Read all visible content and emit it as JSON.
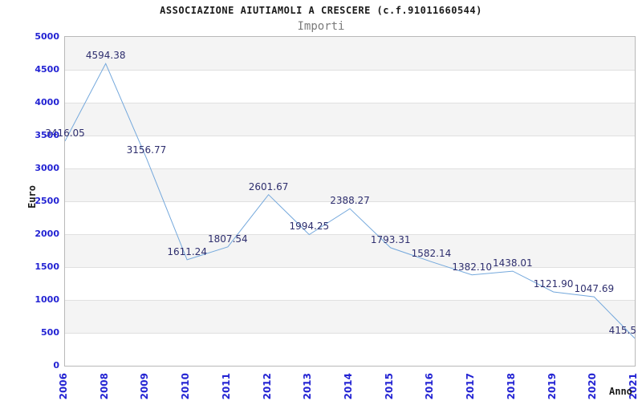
{
  "chart_data": {
    "type": "line",
    "title": "ASSOCIAZIONE AIUTIAMOLI A CRESCERE (c.f.91011660544)",
    "subtitle": "Importi",
    "xlabel": "Anno",
    "ylabel": "Euro",
    "categories": [
      "2006",
      "2008",
      "2009",
      "2010",
      "2011",
      "2012",
      "2013",
      "2014",
      "2015",
      "2016",
      "2017",
      "2018",
      "2019",
      "2020",
      "2021"
    ],
    "series": [
      {
        "name": "Importi",
        "values": [
          3416.05,
          4594.38,
          3156.77,
          1611.24,
          1807.54,
          2601.67,
          1994.25,
          2388.27,
          1793.31,
          1582.14,
          1382.1,
          1438.01,
          1121.9,
          1047.69,
          415.5
        ],
        "point_labels": [
          "3416.05",
          "4594.38",
          "3156.77",
          "1611.24",
          "1807.54",
          "2601.67",
          "1994.25",
          "2388.27",
          "1793.31",
          "1582.14",
          "1382.10",
          "1438.01",
          "1121.90",
          "1047.69",
          "415.5"
        ]
      }
    ],
    "ylim": [
      0,
      5000
    ],
    "y_ticks": [
      "5000",
      "4500",
      "4000",
      "3500",
      "3000",
      "2500",
      "2000",
      "1500",
      "1000",
      "500",
      "0"
    ],
    "grid": "horizontal alternating bands",
    "legend_position": "none",
    "colors": {
      "line": "#74a8dc",
      "value_label": "#2e2e6e",
      "tick_label": "#2323d3",
      "title": "#1a1a1a",
      "subtitle": "#7b7b7b",
      "axis_title": "#1a1a1a",
      "band_gray": "#f4f4f4",
      "band_white": "#ffffff",
      "gridline": "#e0e0e0",
      "plot_border": "#b9b9b9",
      "background": "#ffffff"
    }
  }
}
